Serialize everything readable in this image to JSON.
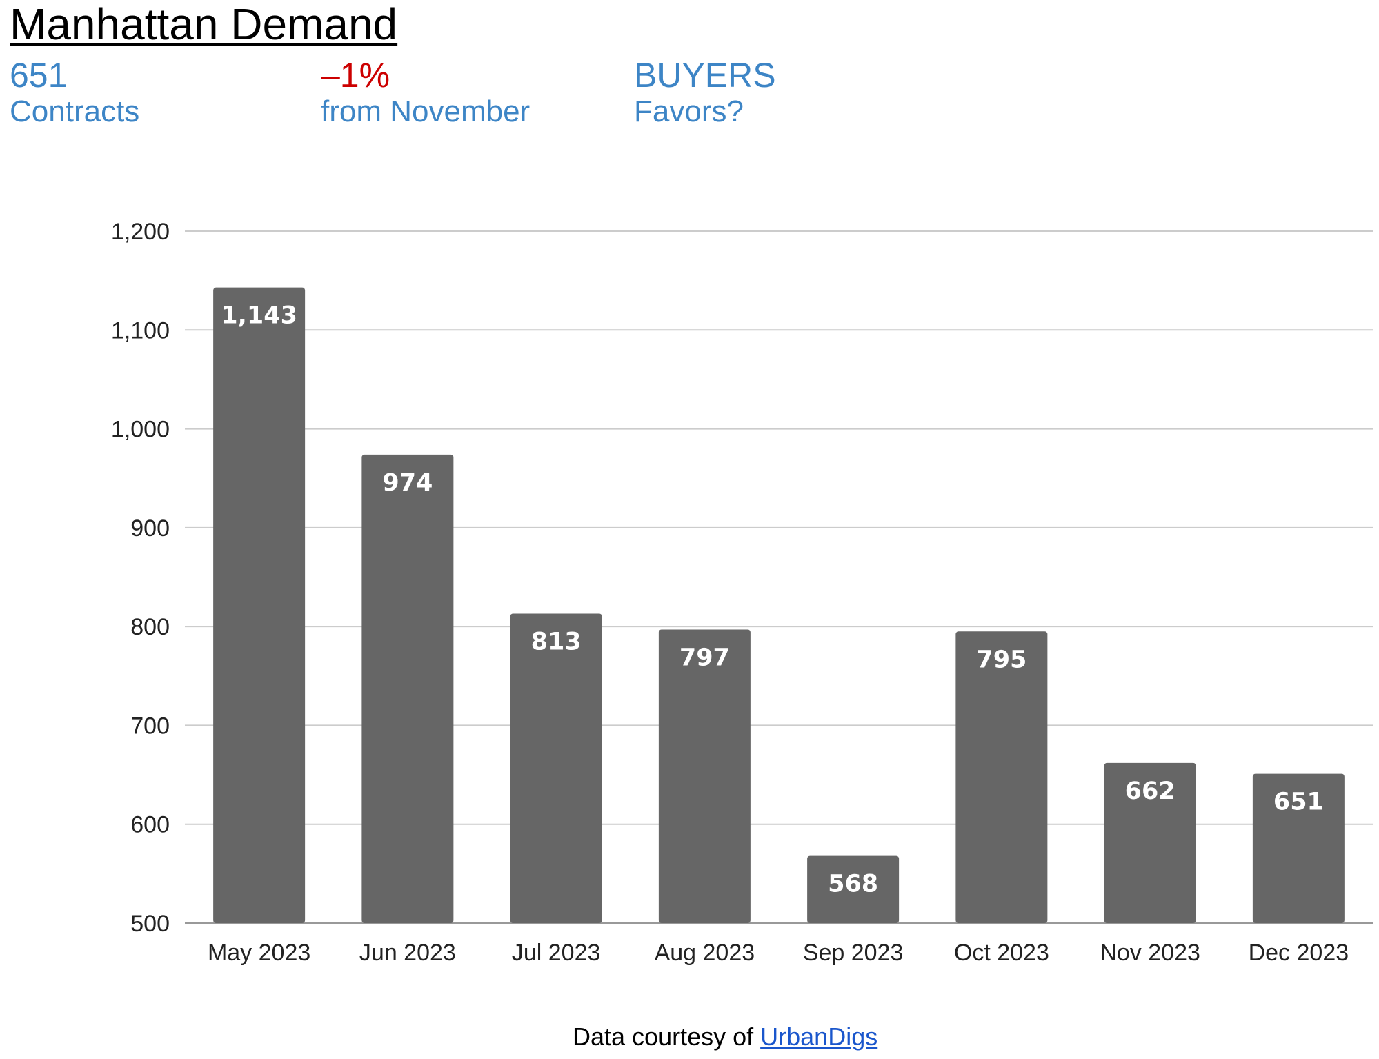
{
  "header": {
    "title": "Manhattan Demand"
  },
  "kpis": {
    "contracts": {
      "value": "651",
      "caption": "Contracts",
      "color": "#3d85c6"
    },
    "change": {
      "value": "–1%",
      "caption": "from November",
      "value_color": "#cc0000",
      "caption_color": "#3d85c6"
    },
    "favors": {
      "value": "BUYERS",
      "caption": "Favors?",
      "color": "#3d85c6"
    }
  },
  "chart_data": {
    "type": "bar",
    "categories": [
      "May 2023",
      "Jun 2023",
      "Jul 2023",
      "Aug 2023",
      "Sep 2023",
      "Oct 2023",
      "Nov 2023",
      "Dec 2023"
    ],
    "values": [
      1143,
      974,
      813,
      797,
      568,
      795,
      662,
      651
    ],
    "data_labels": [
      "1,143",
      "974",
      "813",
      "797",
      "568",
      "795",
      "662",
      "651"
    ],
    "ylim": [
      500,
      1200
    ],
    "yticks": [
      500,
      600,
      700,
      800,
      900,
      1000,
      1100,
      1200
    ],
    "ytick_labels": [
      "500",
      "600",
      "700",
      "800",
      "900",
      "1,000",
      "1,100",
      "1,200"
    ],
    "grid": true,
    "legend": "none",
    "bar_color": "#666666",
    "label_color": "#ffffff",
    "grid_color": "#cccccc"
  },
  "footer": {
    "text": "Data courtesy of ",
    "link_text": "UrbanDigs"
  }
}
